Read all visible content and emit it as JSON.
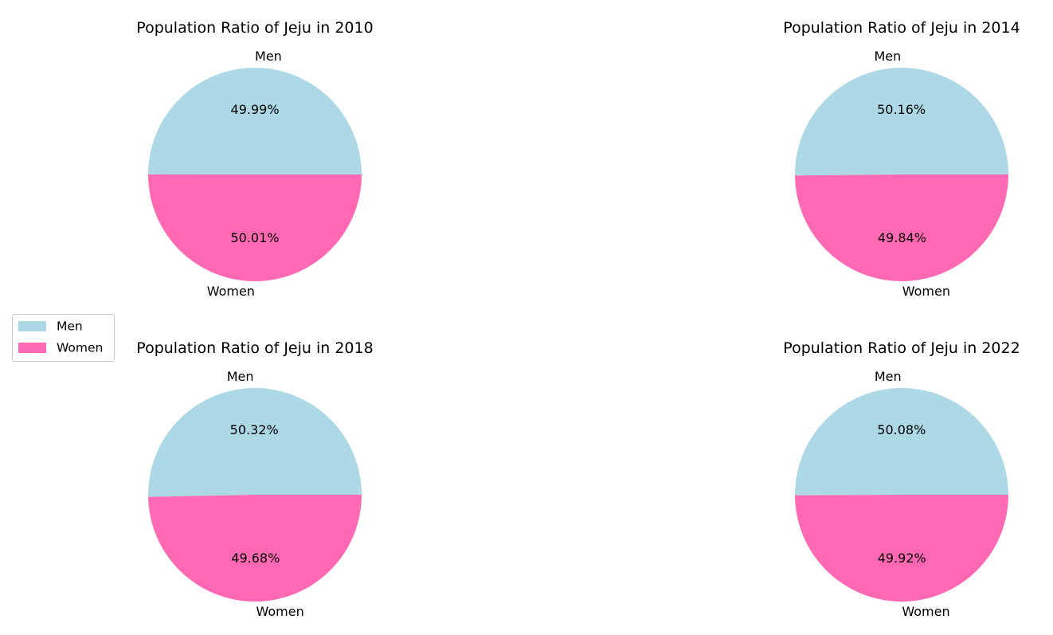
{
  "chart_data": [
    {
      "type": "pie",
      "title": "Population Ratio of Jeju in 2010",
      "labels": [
        "Men",
        "Women"
      ],
      "values": [
        49.99,
        50.01
      ],
      "value_labels": [
        "49.99%",
        "50.01%"
      ]
    },
    {
      "type": "pie",
      "title": "Population Ratio of Jeju in 2014",
      "labels": [
        "Men",
        "Women"
      ],
      "values": [
        50.16,
        49.84
      ],
      "value_labels": [
        "50.16%",
        "49.84%"
      ]
    },
    {
      "type": "pie",
      "title": "Population Ratio of Jeju in 2018",
      "labels": [
        "Men",
        "Women"
      ],
      "values": [
        50.32,
        49.68
      ],
      "value_labels": [
        "50.32%",
        "49.68%"
      ]
    },
    {
      "type": "pie",
      "title": "Population Ratio of Jeju in 2022",
      "labels": [
        "Men",
        "Women"
      ],
      "values": [
        50.08,
        49.92
      ],
      "value_labels": [
        "50.08%",
        "49.92%"
      ]
    }
  ],
  "legend": {
    "placement": "left",
    "entries": [
      "Men",
      "Women"
    ]
  },
  "colors": {
    "men": "#add8e6",
    "women": "#ff69b4"
  }
}
